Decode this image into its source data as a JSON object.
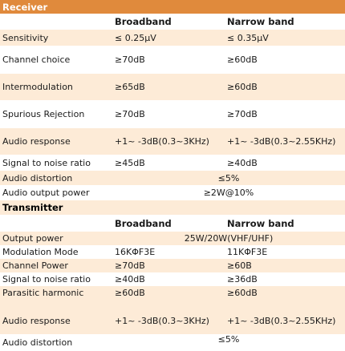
{
  "receiver": {
    "title": "Receiver",
    "col_broadband": "Broadband",
    "col_narrowband": "Narrow band",
    "rows": [
      {
        "label": "Sensitivity",
        "broadband": "≤ 0.25μV",
        "narrowband": "≤ 0.35μV"
      },
      {
        "label": "Channel choice",
        "broadband": "≥70dB",
        "narrowband": "≥60dB"
      },
      {
        "label": "Intermodulation",
        "broadband": "≥65dB",
        "narrowband": "≥60dB"
      },
      {
        "label": "Spurious Rejection",
        "broadband": "≥70dB",
        "narrowband": "≥70dB"
      },
      {
        "label": "Audio response",
        "broadband": "+1~ -3dB(0.3~3KHz)",
        "narrowband": "+1~ -3dB(0.3~2.55KHz)"
      },
      {
        "label": "Signal to noise ratio",
        "broadband": "≥45dB",
        "narrowband": "≥40dB"
      }
    ],
    "audio_distortion": {
      "label": "Audio distortion",
      "value": "≤5%"
    },
    "audio_output_power": {
      "label": "Audio output power",
      "value": "≥2W@10%"
    }
  },
  "transmitter": {
    "title": "Transmitter",
    "col_broadband": "Broadband",
    "col_narrowband": "Narrow band",
    "output_power": {
      "label": "Output power",
      "value": "25W/20W(VHF/UHF)"
    },
    "rows": [
      {
        "label": "Modulation Mode",
        "broadband": "16KΦF3E",
        "narrowband": "11KΦF3E"
      },
      {
        "label": "Channel Power",
        "broadband": "≥70dB",
        "narrowband": "≥60B"
      },
      {
        "label": "Signal to noise ratio",
        "broadband": "≥40dB",
        "narrowband": "≥36dB"
      },
      {
        "label": "Parasitic harmonic",
        "broadband": "≥60dB",
        "narrowband": "≥60dB"
      },
      {
        "label": "Audio response",
        "broadband": "+1~ -3dB(0.3~3KHz)",
        "narrowband": "+1~ -3dB(0.3~2.55KHz)"
      }
    ],
    "audio_distortion": {
      "label": "Audio distortion",
      "value": "≤5%"
    }
  }
}
